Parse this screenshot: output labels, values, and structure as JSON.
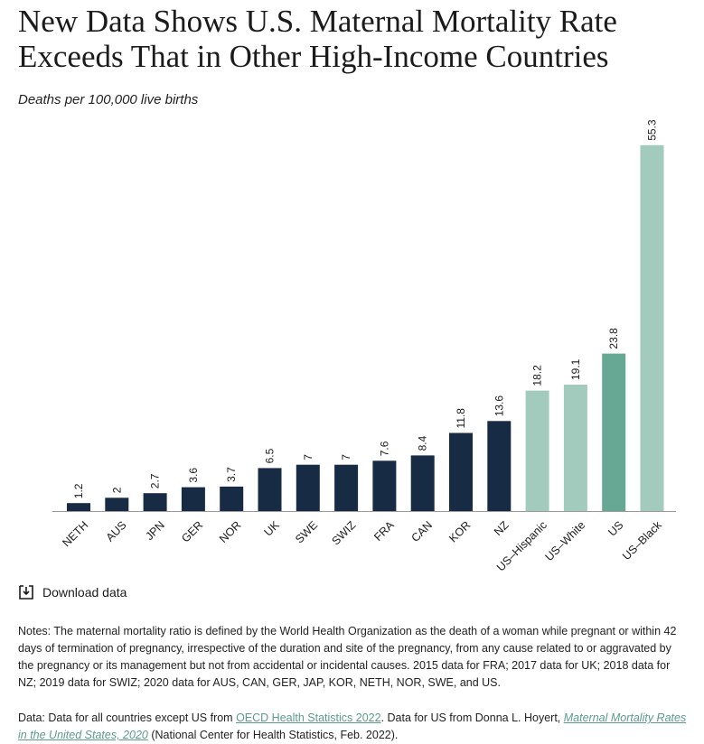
{
  "title": "New Data Shows U.S. Maternal Mortality Rate Exceeds That in Other High-Income Countries",
  "subtitle": "Deaths per 100,000 live births",
  "download_label": "Download data",
  "colors": {
    "dark": "#172b45",
    "light_green": "#a3cbbd",
    "mid_green": "#66a893",
    "axis": "#9a9a9a"
  },
  "chart_data": {
    "type": "bar",
    "title": "",
    "ylabel": "Deaths per 100,000 live births",
    "ylim": [
      0,
      58
    ],
    "categories": [
      "NETH",
      "AUS",
      "JPN",
      "GER",
      "NOR",
      "UK",
      "SWE",
      "SWIZ",
      "FRA",
      "CAN",
      "KOR",
      "NZ",
      "US–Hispanic",
      "US–White",
      "US",
      "US–Black"
    ],
    "values": [
      1.2,
      2,
      2.7,
      3.6,
      3.7,
      6.5,
      7,
      7,
      7.6,
      8.4,
      11.8,
      13.6,
      18.2,
      19.1,
      23.8,
      55.3
    ],
    "value_labels": [
      "1.2",
      "2",
      "2.7",
      "3.6",
      "3.7",
      "6.5",
      "7",
      "7",
      "7.6",
      "8.4",
      "11.8",
      "13.6",
      "18.2",
      "19.1",
      "23.8",
      "55.3"
    ],
    "bar_colors": [
      "#172b45",
      "#172b45",
      "#172b45",
      "#172b45",
      "#172b45",
      "#172b45",
      "#172b45",
      "#172b45",
      "#172b45",
      "#172b45",
      "#172b45",
      "#172b45",
      "#a3cbbd",
      "#a3cbbd",
      "#66a893",
      "#a3cbbd"
    ]
  },
  "notes": "Notes: The maternal mortality ratio is defined by the World Health Organization as the death of a woman while pregnant or within 42 days of termination of pregnancy, irrespective of the duration and site of the pregnancy, from any cause related to or aggravated by the pregnancy or its management but not from accidental or incidental causes. 2015 data for FRA; 2017 data for UK; 2018 data for NZ; 2019 data for SWIZ; 2020 data for AUS, CAN, GER, JAP, KOR, NETH, NOR, SWE, and US.",
  "source": {
    "prefix": "Data: Data for all countries except US from ",
    "link1": "OECD Health Statistics 2022",
    "middle": ". Data for US from Donna L. Hoyert, ",
    "link2": "Maternal Mortality Rates in the United States, 2020",
    "suffix": " (National Center for Health Statistics, Feb. 2022)."
  }
}
